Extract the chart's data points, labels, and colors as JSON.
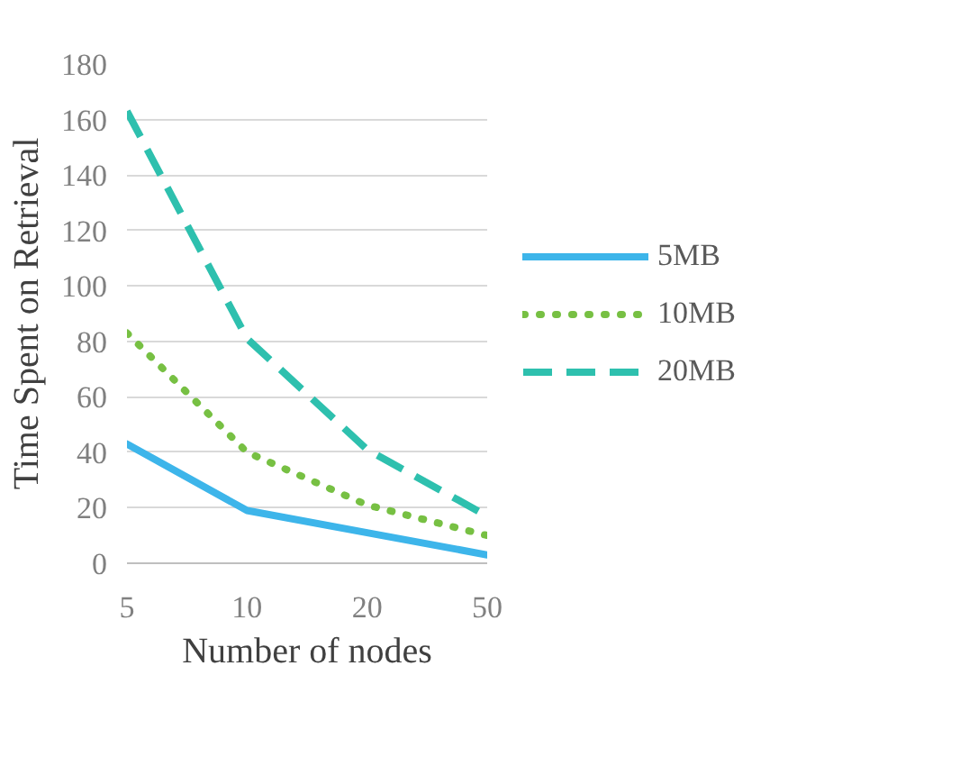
{
  "chart_data": {
    "type": "line",
    "xlabel": "Number of nodes",
    "ylabel": "Time Spent on Retrieval",
    "categories": [
      "5",
      "10",
      "20",
      "50"
    ],
    "series": [
      {
        "name": "5MB",
        "color": "#3db5ea",
        "line_style": "solid",
        "values": [
          43,
          19,
          11,
          3
        ]
      },
      {
        "name": "10MB",
        "color": "#77c043",
        "line_style": "dotted",
        "values": [
          83,
          40,
          21,
          10
        ]
      },
      {
        "name": "20MB",
        "color": "#2ec0ae",
        "line_style": "dashed",
        "values": [
          163,
          81,
          41,
          17
        ]
      }
    ],
    "ylim": [
      0,
      180
    ],
    "yticks": [
      0,
      20,
      40,
      60,
      80,
      100,
      120,
      140,
      160,
      180
    ],
    "grid": "y",
    "legend": "right",
    "marker": "none"
  }
}
